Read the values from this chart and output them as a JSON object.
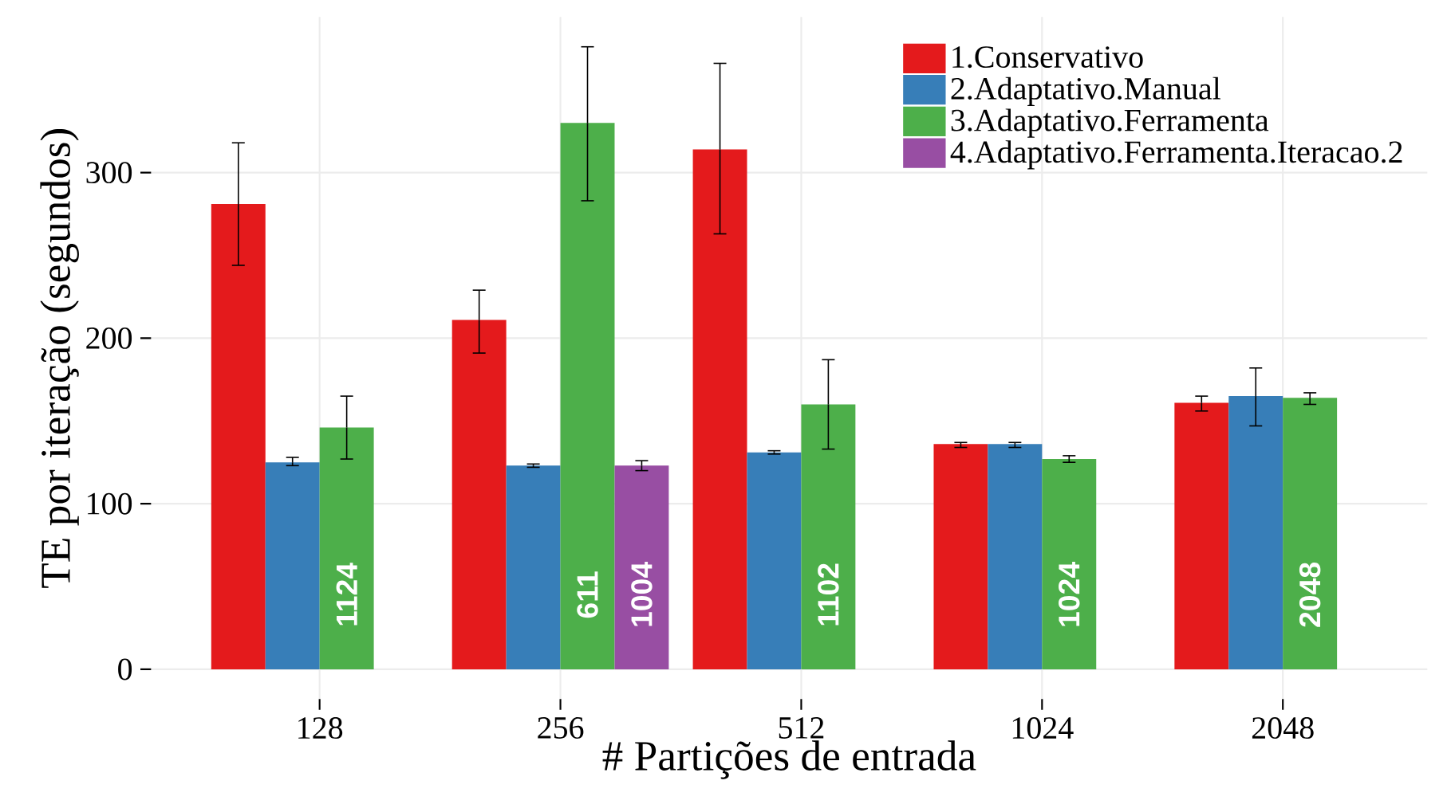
{
  "chart_data": {
    "type": "bar",
    "xlabel": "# Partições de entrada",
    "ylabel": "TE por iteração (segundos)",
    "categories": [
      "128",
      "256",
      "512",
      "1024",
      "2048"
    ],
    "series": [
      {
        "name": "1.Conservativo",
        "color": "#e41a1c",
        "values": [
          281,
          211,
          314,
          136,
          161
        ],
        "errors": [
          [
            244,
            318
          ],
          [
            191,
            229
          ],
          [
            263,
            366
          ],
          [
            134,
            137
          ],
          [
            156,
            165
          ]
        ]
      },
      {
        "name": "2.Adaptativo.Manual",
        "color": "#377eb8",
        "values": [
          125,
          123,
          131,
          136,
          165
        ],
        "errors": [
          [
            123,
            128
          ],
          [
            122,
            124
          ],
          [
            130,
            132
          ],
          [
            134,
            137
          ],
          [
            147,
            182
          ]
        ]
      },
      {
        "name": "3.Adaptativo.Ferramenta",
        "color": "#4daf4a",
        "values": [
          146,
          330,
          160,
          127,
          164
        ],
        "errors": [
          [
            127,
            165
          ],
          [
            283,
            376
          ],
          [
            133,
            187
          ],
          [
            125,
            129
          ],
          [
            160,
            167
          ]
        ]
      },
      {
        "name": "4.Adaptativo.Ferramenta.Iteracao.2",
        "color": "#984ea3",
        "values": [
          null,
          123,
          null,
          null,
          null
        ],
        "errors": [
          null,
          [
            120,
            126
          ],
          null,
          null,
          null
        ]
      }
    ],
    "annotations": [
      {
        "text": "1124",
        "x": "128",
        "y": 45
      },
      {
        "text": "611",
        "x": "256",
        "y": 45
      },
      {
        "text": "1004",
        "x": "256",
        "y": 45
      },
      {
        "text": "1102",
        "x": "512",
        "y": 45
      },
      {
        "text": "1024",
        "x": "1024",
        "y": 45
      },
      {
        "text": "2048",
        "x": "2048",
        "y": 45
      }
    ],
    "ylim": [
      -18,
      394
    ],
    "yticks": [
      0,
      100,
      200,
      300
    ],
    "grid": true,
    "legend": "top right"
  }
}
